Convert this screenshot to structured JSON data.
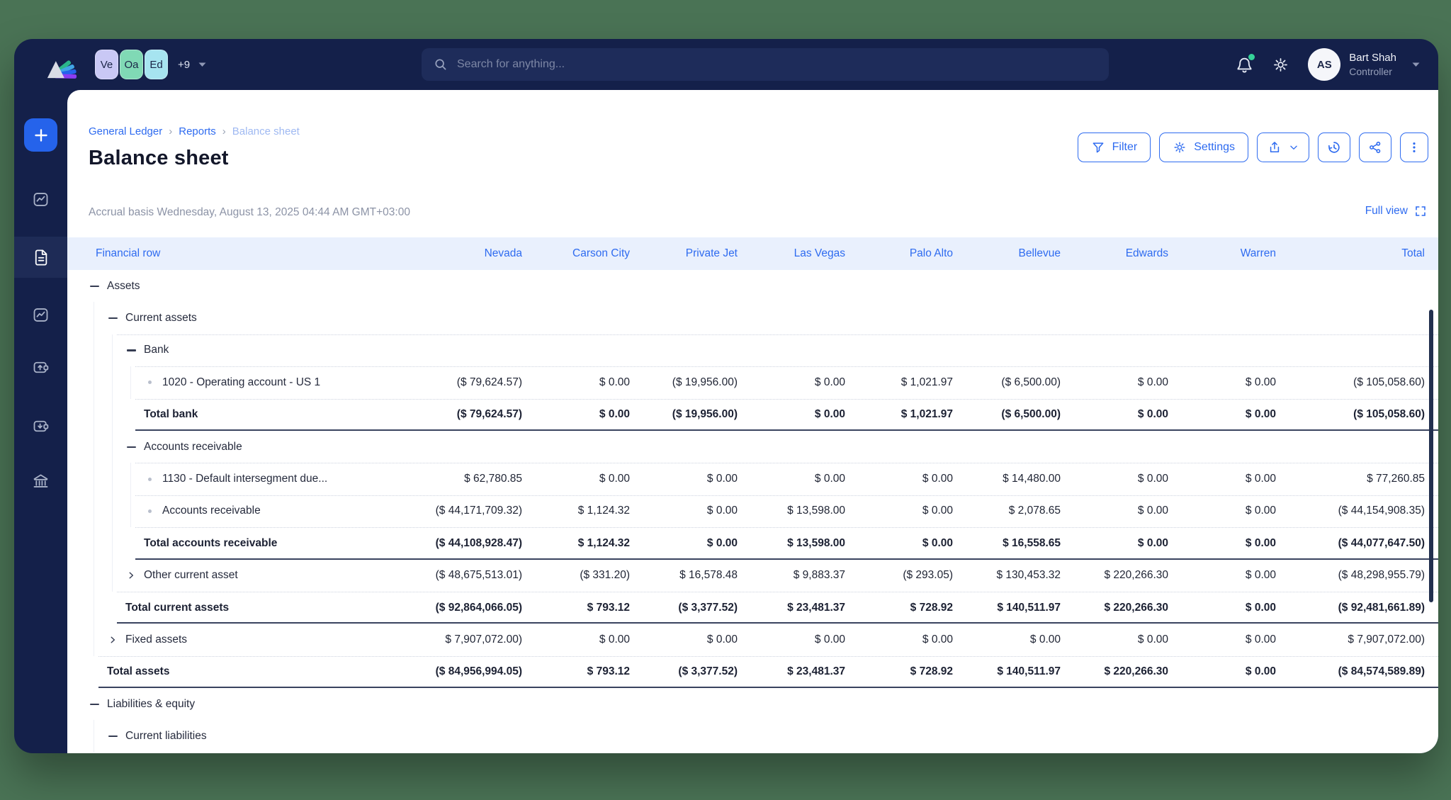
{
  "colors": {
    "canvas_green": "#4a7355",
    "chrome_navy": "#14204a",
    "accent_blue": "#2e6bf0",
    "header_band": "#e9f0fd",
    "notification_green": "#35d399"
  },
  "topbar": {
    "entities": {
      "chips": [
        {
          "label": "Ve",
          "color": "#c9c8f5"
        },
        {
          "label": "Oa",
          "color": "#80d9b5"
        },
        {
          "label": "Ed",
          "color": "#a6e4f0"
        }
      ],
      "overflow_label": "+9"
    },
    "search": {
      "placeholder": "Search for anything..."
    },
    "user": {
      "initials": "AS",
      "name": "Bart Shah",
      "role": "Controller"
    }
  },
  "breadcrumb": {
    "links": [
      "General Ledger",
      "Reports"
    ],
    "separator": "›",
    "current": "Balance sheet"
  },
  "header": {
    "title": "Balance sheet",
    "subtitle": "Accrual basis Wednesday, August 13, 2025 04:44 AM GMT+03:00",
    "full_view_label": "Full view",
    "buttons": {
      "filter": "Filter",
      "settings": "Settings"
    }
  },
  "table": {
    "columns": [
      "Financial row",
      "Nevada",
      "Carson City",
      "Private Jet",
      "Las Vegas",
      "Palo Alto",
      "Bellevue",
      "Edwards",
      "Warren",
      "Total"
    ],
    "rows": [
      {
        "label": "Assets",
        "level": 0,
        "kind": "group",
        "state": "expanded",
        "values": []
      },
      {
        "label": "Current assets",
        "level": 1,
        "kind": "group",
        "state": "expanded",
        "values": []
      },
      {
        "label": "Bank",
        "level": 2,
        "kind": "group",
        "state": "expanded",
        "values": []
      },
      {
        "label": "1020 - Operating account - US 1",
        "level": 3,
        "kind": "leaf",
        "values": [
          "($ 79,624.57)",
          "$ 0.00",
          "($ 19,956.00)",
          "$ 0.00",
          "$ 1,021.97",
          "($ 6,500.00)",
          "$ 0.00",
          "$ 0.00",
          "($ 105,058.60)"
        ]
      },
      {
        "label": "Total bank",
        "level": 2,
        "kind": "total",
        "values": [
          "($ 79,624.57)",
          "$ 0.00",
          "($ 19,956.00)",
          "$ 0.00",
          "$ 1,021.97",
          "($ 6,500.00)",
          "$ 0.00",
          "$ 0.00",
          "($ 105,058.60)"
        ]
      },
      {
        "label": "Accounts receivable",
        "level": 2,
        "kind": "group",
        "state": "expanded",
        "values": []
      },
      {
        "label": "1130 - Default intersegment due...",
        "level": 3,
        "kind": "leaf",
        "values": [
          "$ 62,780.85",
          "$ 0.00",
          "$ 0.00",
          "$ 0.00",
          "$ 0.00",
          "$ 14,480.00",
          "$ 0.00",
          "$ 0.00",
          "$ 77,260.85"
        ]
      },
      {
        "label": "Accounts receivable",
        "level": 3,
        "kind": "leaf",
        "values": [
          "($ 44,171,709.32)",
          "$ 1,124.32",
          "$ 0.00",
          "$ 13,598.00",
          "$ 0.00",
          "$ 2,078.65",
          "$ 0.00",
          "$ 0.00",
          "($ 44,154,908.35)"
        ]
      },
      {
        "label": "Total accounts receivable",
        "level": 2,
        "kind": "total",
        "values": [
          "($ 44,108,928.47)",
          "$ 1,124.32",
          "$ 0.00",
          "$ 13,598.00",
          "$ 0.00",
          "$ 16,558.65",
          "$ 0.00",
          "$ 0.00",
          "($ 44,077,647.50)"
        ]
      },
      {
        "label": "Other current asset",
        "level": 2,
        "kind": "group",
        "state": "collapsed",
        "values": [
          "($ 48,675,513.01)",
          "($ 331.20)",
          "$ 16,578.48",
          "$ 9,883.37",
          "($ 293.05)",
          "$ 130,453.32",
          "$ 220,266.30",
          "$ 0.00",
          "($ 48,298,955.79)"
        ]
      },
      {
        "label": "Total current assets",
        "level": 1,
        "kind": "total",
        "values": [
          "($ 92,864,066.05)",
          "$ 793.12",
          "($ 3,377.52)",
          "$ 23,481.37",
          "$ 728.92",
          "$ 140,511.97",
          "$ 220,266.30",
          "$ 0.00",
          "($ 92,481,661.89)"
        ]
      },
      {
        "label": "Fixed assets",
        "level": 1,
        "kind": "group",
        "state": "collapsed",
        "values": [
          "$ 7,907,072.00)",
          "$ 0.00",
          "$ 0.00",
          "$ 0.00",
          "$ 0.00",
          "$ 0.00",
          "$ 0.00",
          "$ 0.00",
          "$ 7,907,072.00)"
        ]
      },
      {
        "label": "Total assets",
        "level": 0,
        "kind": "total",
        "values": [
          "($ 84,956,994.05)",
          "$ 793.12",
          "($ 3,377.52)",
          "$ 23,481.37",
          "$ 728.92",
          "$ 140,511.97",
          "$ 220,266.30",
          "$ 0.00",
          "($ 84,574,589.89)"
        ]
      },
      {
        "label": "Liabilities & equity",
        "level": 0,
        "kind": "group",
        "state": "expanded",
        "values": []
      },
      {
        "label": "Current liabilities",
        "level": 1,
        "kind": "group",
        "state": "expanded",
        "values": []
      }
    ]
  }
}
